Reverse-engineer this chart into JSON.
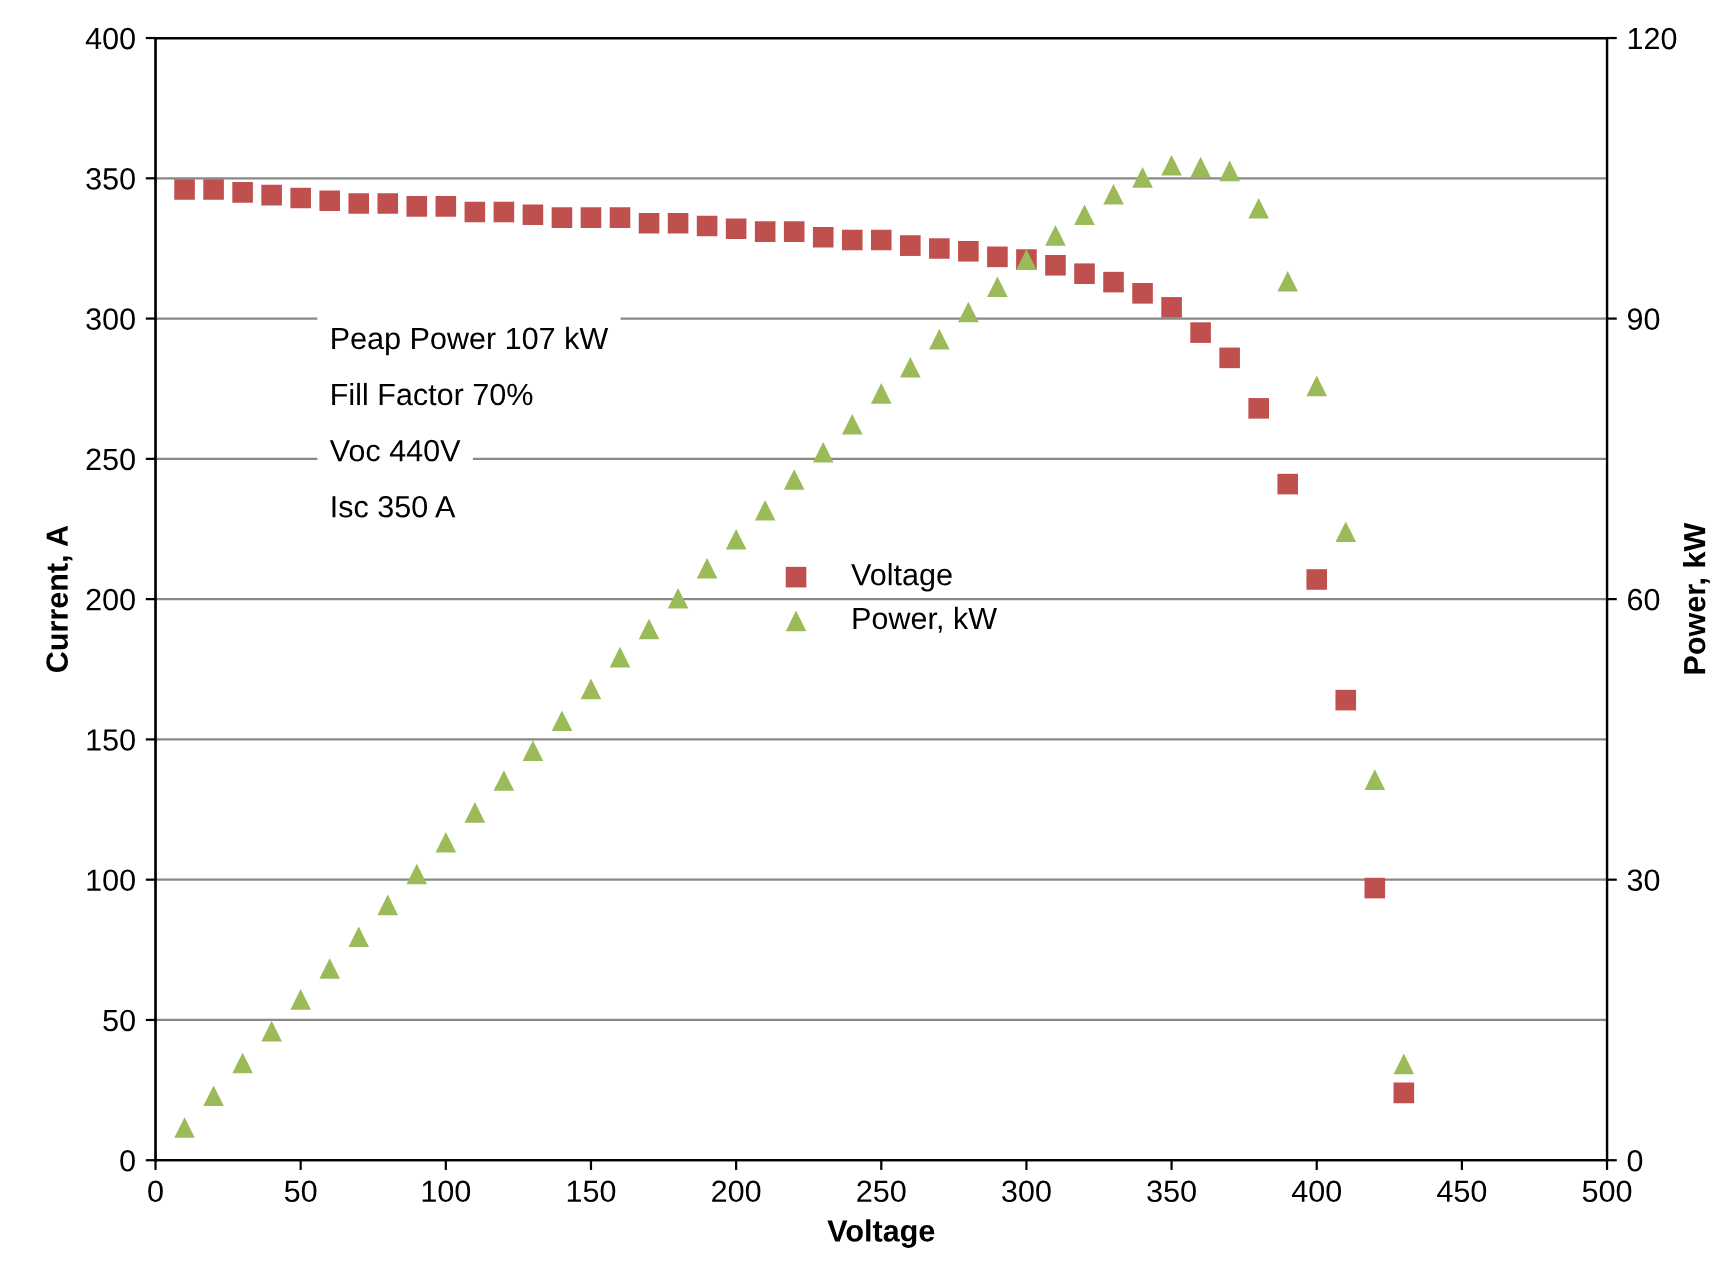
{
  "chart_data": {
    "type": "scatter",
    "xlabel": "Voltage",
    "ylabel": "Current, A",
    "y2label": "Power, kW",
    "x": [
      10,
      20,
      30,
      40,
      50,
      60,
      70,
      80,
      90,
      100,
      110,
      120,
      130,
      140,
      150,
      160,
      170,
      180,
      190,
      200,
      210,
      220,
      230,
      240,
      250,
      260,
      270,
      280,
      290,
      300,
      310,
      320,
      330,
      340,
      350,
      360,
      370,
      380,
      390,
      400,
      410,
      420,
      430
    ],
    "series": [
      {
        "name": "Voltage",
        "color": "#c0504d",
        "marker": "square",
        "values": [
          346,
          346,
          345,
          344,
          343,
          342,
          341,
          341,
          340,
          340,
          338,
          338,
          337,
          336,
          336,
          336,
          334,
          334,
          333,
          332,
          331,
          331,
          329,
          328,
          328,
          326,
          325,
          324,
          322,
          321,
          319,
          316,
          313,
          309,
          304,
          295,
          286,
          268,
          241,
          207,
          164,
          97,
          24
        ]
      },
      {
        "name": "Power, kW",
        "color": "#9bbb59",
        "marker": "triangle",
        "axis": "y2",
        "values": [
          3.5,
          6.9,
          10.4,
          13.8,
          17.2,
          20.5,
          23.9,
          27.3,
          30.6,
          34,
          37.2,
          40.6,
          43.8,
          47,
          50.4,
          53.8,
          56.8,
          60.1,
          63.3,
          66.4,
          69.5,
          72.8,
          75.7,
          78.7,
          82,
          84.8,
          87.8,
          90.7,
          93.4,
          96.3,
          98.9,
          101.1,
          103.3,
          105.1,
          106.4,
          106.2,
          105.8,
          101.8,
          94,
          82.8,
          67.2,
          40.7,
          10.3
        ]
      }
    ],
    "xlim": [
      0,
      500
    ],
    "xticks": [
      0,
      50,
      100,
      150,
      200,
      250,
      300,
      350,
      400,
      450,
      500
    ],
    "ylim": [
      0,
      400
    ],
    "yticks": [
      0,
      50,
      100,
      150,
      200,
      250,
      300,
      350,
      400
    ],
    "y2lim": [
      0,
      120
    ],
    "y2ticks": [
      0,
      30,
      60,
      90,
      120
    ],
    "grid": "y",
    "legend": "center",
    "annotations": [
      "Peap Power 107 kW",
      "Fill Factor 70%",
      "Voc 440V",
      "Isc 350 A"
    ]
  }
}
